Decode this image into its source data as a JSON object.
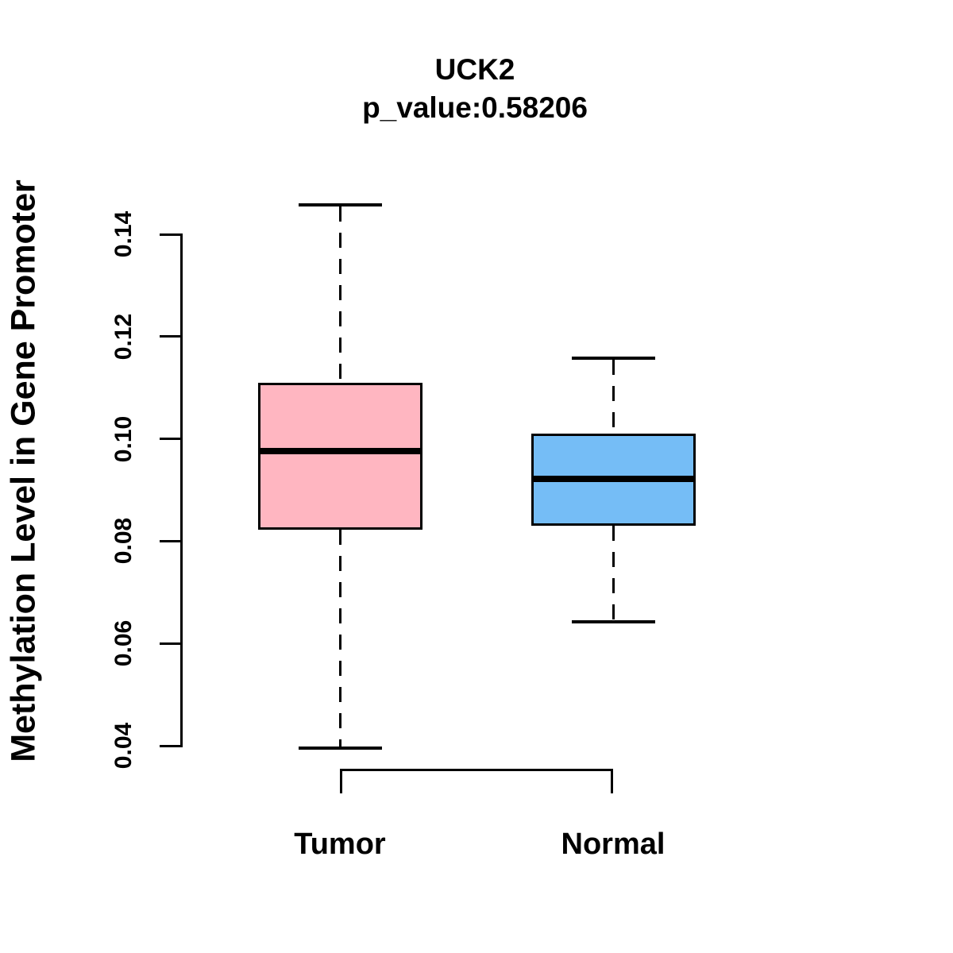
{
  "title": {
    "line1": "UCK2",
    "line2": "p_value:0.58206"
  },
  "chart_data": {
    "type": "boxplot",
    "title": "UCK2",
    "subtitle": "p_value:0.58206",
    "p_value": 0.58206,
    "ylabel": "Methylation Level in Gene Promoter",
    "xlabel": "",
    "y_ticks": [
      0.04,
      0.06,
      0.08,
      0.1,
      0.12,
      0.14
    ],
    "y_tick_labels": [
      "0.04",
      "0.06",
      "0.08",
      "0.10",
      "0.12",
      "0.14"
    ],
    "ylim": [
      0.033,
      0.15
    ],
    "grid": false,
    "categories": [
      "Tumor",
      "Normal"
    ],
    "groups": [
      {
        "label": "Tumor",
        "color": "#FFB6C1",
        "lower_whisker": 0.0395,
        "q1": 0.0822,
        "median": 0.0976,
        "q3": 0.1109,
        "upper_whisker": 0.1457
      },
      {
        "label": "Normal",
        "color": "#75BDF6",
        "lower_whisker": 0.0642,
        "q1": 0.083,
        "median": 0.0921,
        "q3": 0.101,
        "upper_whisker": 0.1158
      }
    ]
  }
}
